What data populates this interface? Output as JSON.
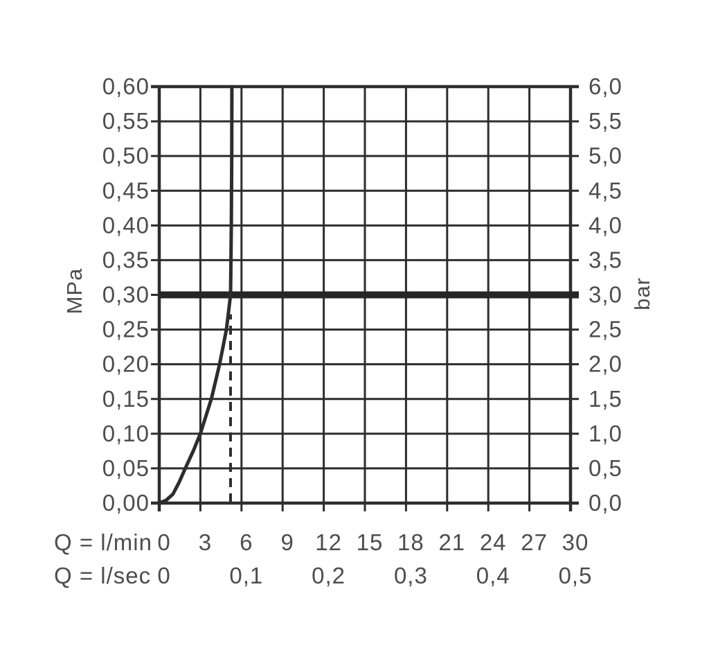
{
  "chart_data": {
    "type": "line",
    "title": "",
    "grid": true,
    "background": "#ffffff",
    "colors": {
      "line": "#2d2d2d",
      "reference_line": "#262626",
      "text": "#4d4d4d"
    },
    "left_axis": {
      "unit": "MPa",
      "min": 0,
      "max": 0.6,
      "step": 0.05,
      "tick_labels": [
        "0,00",
        "0,05",
        "0,10",
        "0,15",
        "0,20",
        "0,25",
        "0,30",
        "0,35",
        "0,40",
        "0,45",
        "0,50",
        "0,55",
        "0,60"
      ]
    },
    "right_axis": {
      "unit": "bar",
      "min": 0,
      "max": 6,
      "step": 0.5,
      "tick_labels": [
        "0,0",
        "0,5",
        "1,0",
        "1,5",
        "2,0",
        "2,5",
        "3,0",
        "3,5",
        "4,0",
        "4,5",
        "5,0",
        "5,5",
        "6,0"
      ]
    },
    "x_axis_lmin": {
      "label": "Q = l/min",
      "min": 0,
      "max": 30,
      "step": 3,
      "tick_values": [
        0,
        3,
        6,
        9,
        12,
        15,
        18,
        21,
        24,
        27,
        30
      ],
      "tick_labels": [
        "0",
        "3",
        "6",
        "9",
        "12",
        "15",
        "18",
        "21",
        "24",
        "27",
        "30"
      ]
    },
    "x_axis_lsec": {
      "label": "Q = l/sec",
      "tick_labels": [
        "0",
        "0,1",
        "0,2",
        "0,3",
        "0,4",
        "0,5"
      ],
      "tick_positions_lmin": [
        0,
        6,
        12,
        18,
        24,
        30
      ]
    },
    "series": [
      {
        "name": "flow-curve",
        "points_q_lmin_p_mpa": [
          [
            0.0,
            0.0
          ],
          [
            0.5,
            0.004
          ],
          [
            1.0,
            0.013
          ],
          [
            1.45,
            0.03
          ],
          [
            1.9,
            0.05
          ],
          [
            2.5,
            0.076
          ],
          [
            3.0,
            0.1
          ],
          [
            3.4,
            0.125
          ],
          [
            3.8,
            0.15
          ],
          [
            4.1,
            0.175
          ],
          [
            4.4,
            0.2
          ],
          [
            4.65,
            0.225
          ],
          [
            4.9,
            0.25
          ],
          [
            5.05,
            0.275
          ],
          [
            5.2,
            0.3
          ],
          [
            5.26,
            0.4
          ],
          [
            5.29,
            0.5
          ],
          [
            5.3,
            0.6
          ]
        ]
      }
    ],
    "reference_line": {
      "p_mpa": 0.3,
      "p_bar": 3.0
    },
    "dashed_guide": {
      "q_lmin": 5.2,
      "p_from_mpa": 0,
      "p_to_mpa": 0.272
    }
  }
}
